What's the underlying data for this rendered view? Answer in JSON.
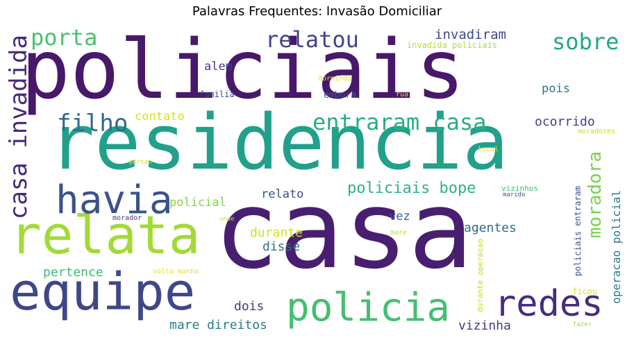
{
  "title": "Palavras Frequentes: Invasão Domiciliar",
  "palette": {
    "dark_purple": "#48186a",
    "indigo": "#3b528b",
    "teal": "#21918c",
    "green": "#35b779",
    "lime": "#a5db36",
    "yellow": "#d6e22b"
  },
  "words": [
    {
      "text": "policiais",
      "color": "#48186a"
    },
    {
      "text": "residencia",
      "color": "#21a08a"
    },
    {
      "text": "casa",
      "color": "#481f70"
    },
    {
      "text": "relata",
      "color": "#a2da37"
    },
    {
      "text": "equipe",
      "color": "#3f4788"
    },
    {
      "text": "havia",
      "color": "#3b528b"
    },
    {
      "text": "policia",
      "color": "#44bf70"
    },
    {
      "text": "redes",
      "color": "#472d7b"
    },
    {
      "text": "entraram casa",
      "color": "#29af7f"
    },
    {
      "text": "casa invadida",
      "color": "#482878"
    },
    {
      "text": "filho",
      "color": "#31688e"
    },
    {
      "text": "porta",
      "color": "#4ac16d"
    },
    {
      "text": "relatou",
      "color": "#414487"
    },
    {
      "text": "sobre",
      "color": "#22a785"
    },
    {
      "text": "moradora",
      "color": "#7ad151"
    },
    {
      "text": "policiais bope",
      "color": "#2fb47c"
    },
    {
      "text": "invadiram",
      "color": "#3e4989"
    },
    {
      "text": "invadida policiais",
      "color": "#b5de2b"
    },
    {
      "text": "alem",
      "color": "#433e85"
    },
    {
      "text": "pois",
      "color": "#2c728e"
    },
    {
      "text": "familia",
      "color": "#3e4a89"
    },
    {
      "text": "embora",
      "color": "#355f8d"
    },
    {
      "text": "dormindo",
      "color": "#dde318"
    },
    {
      "text": "rua",
      "color": "#d0e11c"
    },
    {
      "text": "contato",
      "color": "#d8e219"
    },
    {
      "text": "ocorrido",
      "color": "#424086"
    },
    {
      "text": "moradores",
      "color": "#c8e020"
    },
    {
      "text": "local",
      "color": "#e2e418"
    },
    {
      "text": "portao",
      "color": "#d2e21b"
    },
    {
      "text": "relato",
      "color": "#3b528b"
    },
    {
      "text": "policial",
      "color": "#84d44b"
    },
    {
      "text": "operacao policial",
      "color": "#2a788e"
    },
    {
      "text": "vizinhos",
      "color": "#3fbc73"
    },
    {
      "text": "marido",
      "color": "#3b528b"
    },
    {
      "text": "morador",
      "color": "#46337e"
    },
    {
      "text": "onde",
      "color": "#c0df25"
    },
    {
      "text": "durante",
      "color": "#cde11d"
    },
    {
      "text": "vez",
      "color": "#365d8d"
    },
    {
      "text": "agentes",
      "color": "#2e6e8e"
    },
    {
      "text": "disse",
      "color": "#2d708e"
    },
    {
      "text": "mare",
      "color": "#c2df23"
    },
    {
      "text": "pertence",
      "color": "#3dbc74"
    },
    {
      "text": "volta manha",
      "color": "#e5e419"
    },
    {
      "text": "policiais entraram",
      "color": "#3b528b"
    },
    {
      "text": "durante operacao",
      "color": "#b8de29"
    },
    {
      "text": "dois",
      "color": "#423f85"
    },
    {
      "text": "mare direitos",
      "color": "#287c8e"
    },
    {
      "text": "ficou",
      "color": "#dde318"
    },
    {
      "text": "vizinha",
      "color": "#443a83"
    },
    {
      "text": "fazer",
      "color": "#9dd93b"
    }
  ]
}
